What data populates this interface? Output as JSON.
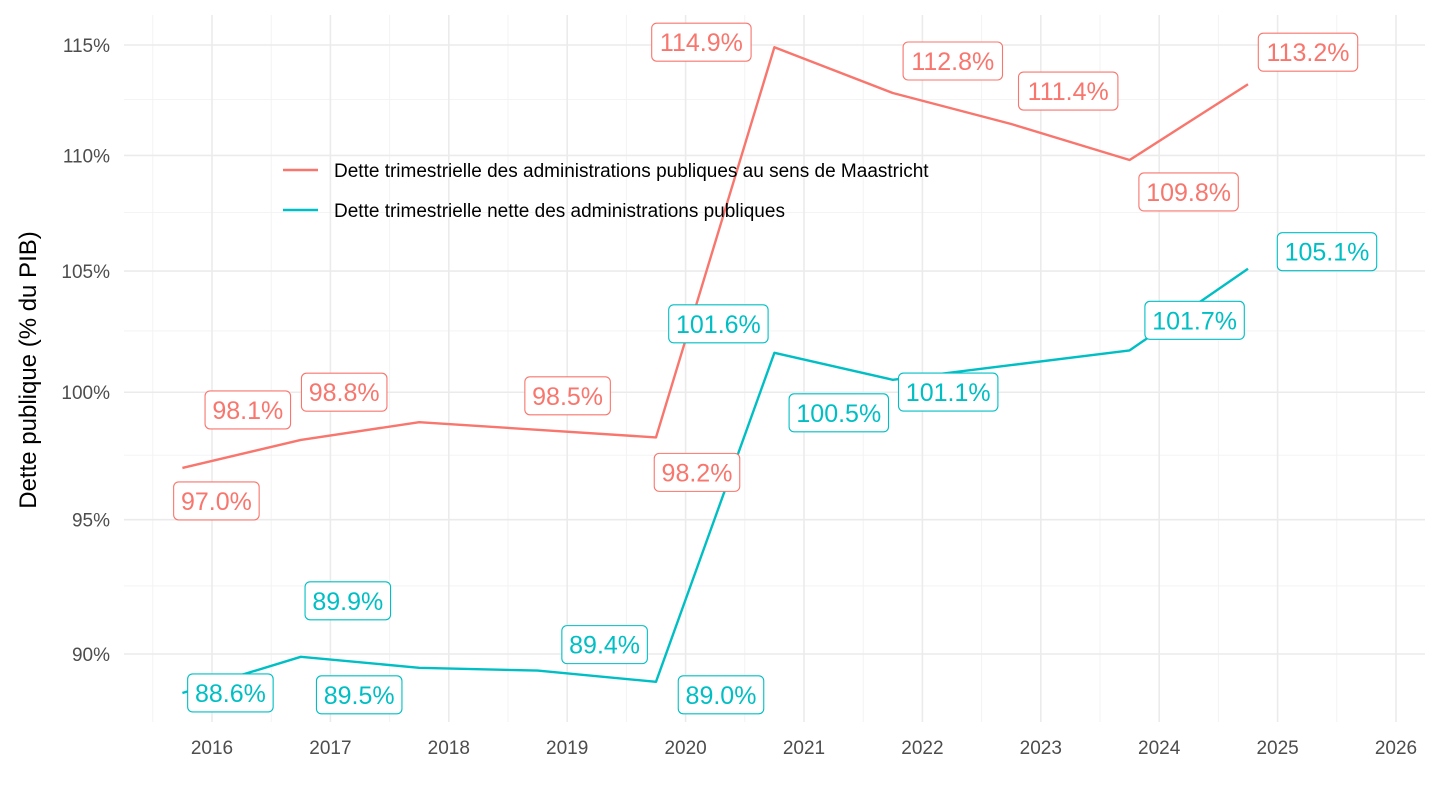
{
  "chart_data": {
    "type": "line",
    "title": "",
    "xlabel": "",
    "ylabel": "Dette publique (% du PIB)",
    "y_scale": "log",
    "ylim": [
      87.4,
      116.7
    ],
    "xlim": [
      2015.25,
      2026.25
    ],
    "grid": true,
    "legend_position": "top-center-inside",
    "x_ticks": [
      2016,
      2017,
      2018,
      2019,
      2020,
      2021,
      2022,
      2023,
      2024,
      2025,
      2026
    ],
    "x_tick_labels": [
      "2016",
      "2017",
      "2018",
      "2019",
      "2020",
      "2021",
      "2022",
      "2023",
      "2024",
      "2025",
      "2026"
    ],
    "y_ticks": [
      90,
      95,
      100,
      105,
      110,
      115
    ],
    "y_tick_labels": [
      "90%",
      "95%",
      "100%",
      "105%",
      "110%",
      "115%"
    ],
    "x": [
      2015.75,
      2016.75,
      2017.75,
      2018.75,
      2019.75,
      2020.75,
      2021.75,
      2022.75,
      2023.75,
      2024.75
    ],
    "series": [
      {
        "name": "Dette trimestrielle des administrations publiques au sens de Maastricht",
        "color": "#F8766D",
        "values": [
          97.0,
          98.1,
          98.8,
          98.5,
          98.2,
          114.9,
          112.8,
          111.4,
          109.8,
          113.2
        ],
        "labels": [
          "97.0%",
          "98.1%",
          "98.8%",
          "98.5%",
          "98.2%",
          "114.9%",
          "112.8%",
          "111.4%",
          "109.8%",
          "113.2%"
        ]
      },
      {
        "name": "Dette trimestrielle nette des administrations publiques",
        "color": "#00BFC4",
        "values": [
          88.6,
          89.9,
          89.5,
          89.4,
          89.0,
          101.6,
          100.5,
          101.1,
          101.7,
          105.1
        ],
        "labels": [
          "88.6%",
          "89.9%",
          "89.5%",
          "89.4%",
          "89.0%",
          "101.6%",
          "100.5%",
          "101.1%",
          "101.7%",
          "105.1%"
        ]
      }
    ]
  },
  "colors": {
    "background": "#ffffff",
    "grid": "#ebebeb",
    "tick_text": "#4d4d4d"
  }
}
